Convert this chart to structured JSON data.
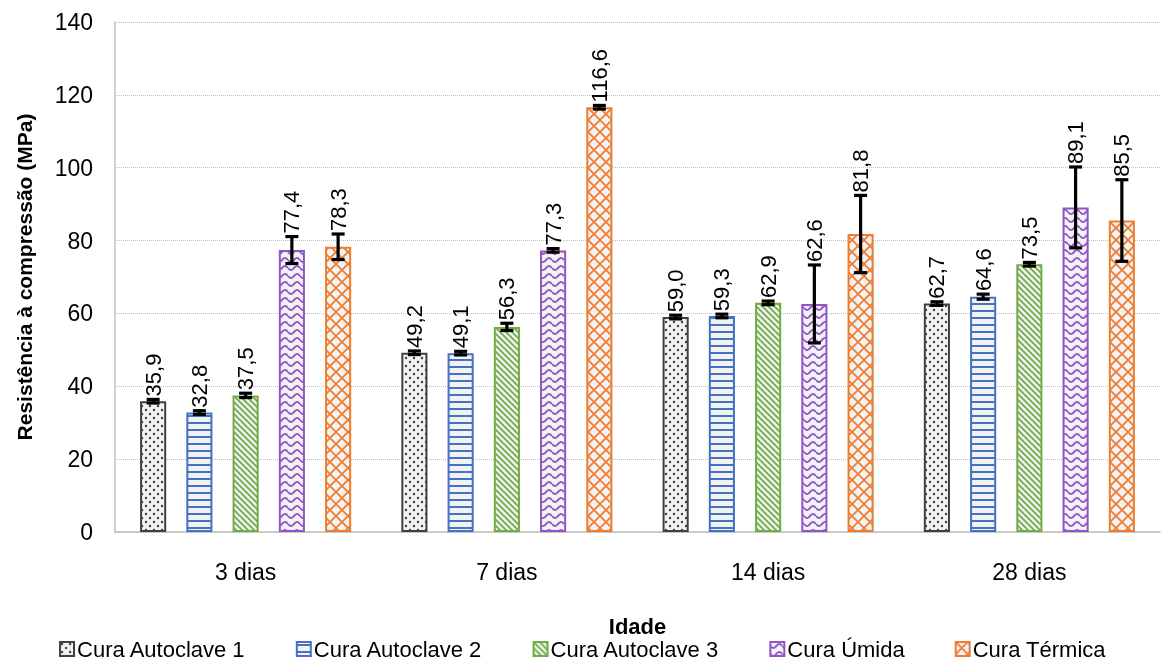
{
  "chart_data": {
    "type": "bar",
    "xlabel": "Idade",
    "ylabel": "Resistência à compressão (MPa)",
    "categories": [
      "3 dias",
      "7 dias",
      "14 dias",
      "28 dias"
    ],
    "series": [
      {
        "name": "Cura Autoclave 1",
        "color": "#404040",
        "values": [
          35.9,
          49.2,
          59.0,
          62.7
        ],
        "errors": [
          0.5,
          0.5,
          0.5,
          0.5
        ],
        "value_labels": [
          "35,9",
          "49,2",
          "59,0",
          "62,7"
        ]
      },
      {
        "name": "Cura Autoclave 2",
        "color": "#4472c4",
        "values": [
          32.8,
          49.1,
          59.3,
          64.6
        ],
        "errors": [
          0.5,
          0.5,
          0.5,
          0.7
        ],
        "value_labels": [
          "32,8",
          "49,1",
          "59,3",
          "64,6"
        ]
      },
      {
        "name": "Cura Autoclave 3",
        "color": "#70ad47",
        "values": [
          37.5,
          56.3,
          62.9,
          73.5
        ],
        "errors": [
          0.6,
          1.0,
          0.5,
          0.5
        ],
        "value_labels": [
          "37,5",
          "56,3",
          "62,9",
          "73,5"
        ]
      },
      {
        "name": "Cura Úmida",
        "color": "#9155c8",
        "values": [
          77.4,
          77.3,
          62.6,
          89.1
        ],
        "errors": [
          3.7,
          0.5,
          10.7,
          11.1
        ],
        "value_labels": [
          "77,4",
          "77,3",
          "62,6",
          "89,1"
        ]
      },
      {
        "name": "Cura Térmica",
        "color": "#ed7d31",
        "values": [
          78.3,
          116.6,
          81.8,
          85.5
        ],
        "errors": [
          3.5,
          0.5,
          10.6,
          11.2
        ],
        "value_labels": [
          "78,3",
          "116,6",
          "81,8",
          "85,5"
        ]
      }
    ],
    "ylim": [
      0,
      140
    ],
    "yticks": [
      0,
      20,
      40,
      60,
      80,
      100,
      120,
      140
    ],
    "grid": "y",
    "legend": "bottom"
  }
}
